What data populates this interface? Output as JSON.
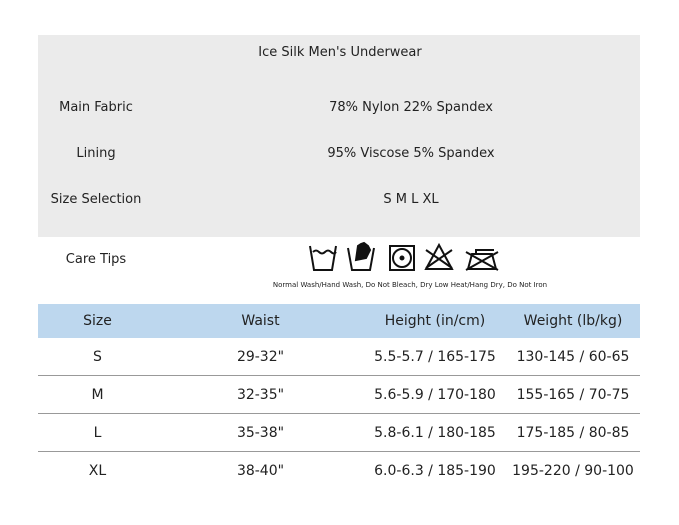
{
  "title": "Ice Silk Men's Underwear",
  "specs": [
    {
      "label": "Main Fabric",
      "value": "78% Nylon 22% Spandex"
    },
    {
      "label": "Lining",
      "value": "95% Viscose 5% Spandex"
    },
    {
      "label": "Size Selection",
      "value": "S M L XL"
    }
  ],
  "care": {
    "label": "Care Tips",
    "icons": [
      "wash-tub-icon",
      "hand-wash-icon",
      "tumble-dry-low-icon",
      "do-not-bleach-icon",
      "do-not-iron-icon"
    ],
    "text": "Normal Wash/Hand Wash, Do Not Bleach, Dry Low Heat/Hang Dry, Do Not Iron"
  },
  "table": {
    "header_color": "#bdd7ee",
    "headers": [
      "Size",
      "Waist",
      "Height (in/cm)",
      "Weight (lb/kg)"
    ],
    "rows": [
      [
        "S",
        "29-32\"",
        "5.5-5.7 / 165-175",
        "130-145 / 60-65"
      ],
      [
        "M",
        "32-35\"",
        "5.6-5.9 / 170-180",
        "155-165 / 70-75"
      ],
      [
        "L",
        "35-38\"",
        "5.8-6.1 / 180-185",
        "175-185 / 80-85"
      ],
      [
        "XL",
        "38-40\"",
        "6.0-6.3 / 185-190",
        "195-220 / 90-100"
      ]
    ]
  }
}
